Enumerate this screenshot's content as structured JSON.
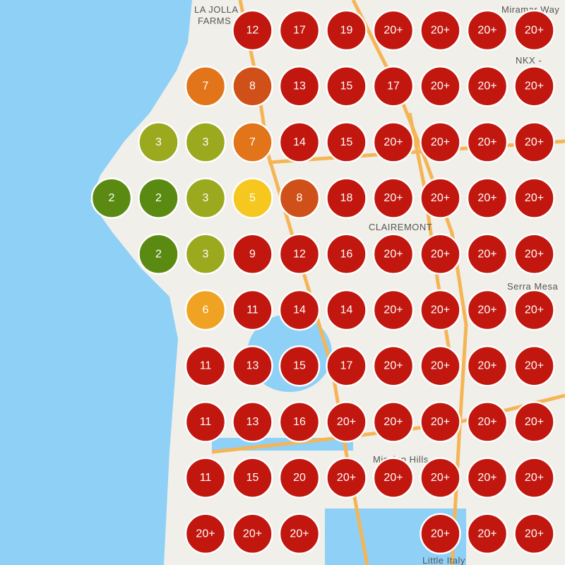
{
  "map_labels": [
    "LA JOLLA",
    "FARMS",
    "Miramar Way",
    "NKX -",
    "CLAIREMONT",
    "Serra Mesa",
    "Mission Hills",
    "Little Italy"
  ],
  "marker_rows": [
    [
      null,
      null,
      null,
      "12",
      "17",
      "19",
      "20+",
      "20+",
      "20+",
      "20+"
    ],
    [
      null,
      null,
      "7",
      "8",
      "13",
      "15",
      "17",
      "20+",
      "20+",
      "20+"
    ],
    [
      null,
      "3",
      "3",
      "7",
      "14",
      "15",
      "20+",
      "20+",
      "20+",
      "20+"
    ],
    [
      "2",
      "2",
      "3",
      "5",
      "8",
      "18",
      "20+",
      "20+",
      "20+",
      "20+"
    ],
    [
      null,
      "2",
      "3",
      "9",
      "12",
      "16",
      "20+",
      "20+",
      "20+",
      "20+"
    ],
    [
      null,
      null,
      "6",
      "11",
      "14",
      "14",
      "20+",
      "20+",
      "20+",
      "20+"
    ],
    [
      null,
      null,
      "11",
      "13",
      "15",
      "17",
      "20+",
      "20+",
      "20+",
      "20+"
    ],
    [
      null,
      null,
      "11",
      "13",
      "16",
      "20+",
      "20+",
      "20+",
      "20+",
      "20+"
    ],
    [
      null,
      null,
      "11",
      "15",
      "20",
      "20+",
      "20+",
      "20+",
      "20+",
      "20+"
    ],
    [
      null,
      null,
      "20+",
      "20+",
      "20+",
      null,
      null,
      "20+",
      "20+",
      "20+"
    ]
  ]
}
